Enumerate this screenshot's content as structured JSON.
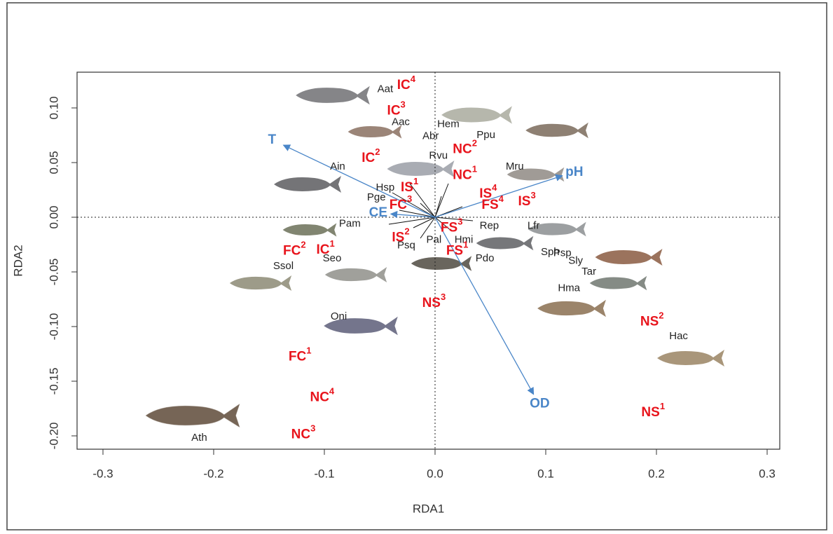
{
  "chart_data": {
    "type": "biplot",
    "x_label": "RDA1",
    "y_label": "RDA2",
    "xlim": [
      -0.3234,
      0.3114
    ],
    "ylim": [
      -0.2122,
      0.1327
    ],
    "xticks": [
      -0.3,
      -0.2,
      -0.1,
      {
        "value": 0,
        "label": "0.0"
      },
      0.1,
      0.2,
      0.3
    ],
    "yticks": [
      {
        "value": 0.1,
        "label": "0.10"
      },
      0.05,
      {
        "value": 0,
        "label": "0.00"
      },
      -0.05,
      {
        "value": -0.1,
        "label": "-0.10"
      },
      -0.15,
      {
        "value": -0.2,
        "label": "-0.20"
      }
    ],
    "sites_color": "#e8141c",
    "species_color": "#222222",
    "vectors_color": "#4a86c8",
    "sites": [
      {
        "label": "IC",
        "sup": "4",
        "x": -0.026,
        "y": 0.1205
      },
      {
        "label": "IC",
        "sup": "3",
        "x": -0.035,
        "y": 0.097
      },
      {
        "label": "IC",
        "sup": "2",
        "x": -0.058,
        "y": 0.054
      },
      {
        "label": "NC",
        "sup": "2",
        "x": 0.027,
        "y": 0.062
      },
      {
        "label": "NC",
        "sup": "1",
        "x": 0.027,
        "y": 0.038
      },
      {
        "label": "IS",
        "sup": "4",
        "x": 0.048,
        "y": 0.021
      },
      {
        "label": "FS",
        "sup": "4",
        "x": 0.052,
        "y": 0.011
      },
      {
        "label": "IS",
        "sup": "3",
        "x": 0.083,
        "y": 0.014
      },
      {
        "label": "IS",
        "sup": "1",
        "x": -0.023,
        "y": 0.027
      },
      {
        "label": "FC",
        "sup": "3",
        "x": -0.031,
        "y": 0.011
      },
      {
        "label": "FS",
        "sup": "3",
        "x": 0.015,
        "y": -0.01
      },
      {
        "label": "IS",
        "sup": "2",
        "x": -0.031,
        "y": -0.019
      },
      {
        "label": "FS",
        "sup": "1",
        "x": 0.02,
        "y": -0.031
      },
      {
        "label": "FC",
        "sup": "2",
        "x": -0.127,
        "y": -0.031
      },
      {
        "label": "IC",
        "sup": "1",
        "x": -0.099,
        "y": -0.03
      },
      {
        "label": "NS",
        "sup": "3",
        "x": -0.001,
        "y": -0.079
      },
      {
        "label": "NS",
        "sup": "2",
        "x": 0.196,
        "y": -0.096
      },
      {
        "label": "FC",
        "sup": "1",
        "x": -0.122,
        "y": -0.128
      },
      {
        "label": "NC",
        "sup": "4",
        "x": -0.102,
        "y": -0.165
      },
      {
        "label": "NS",
        "sup": "1",
        "x": 0.197,
        "y": -0.179
      },
      {
        "label": "NC",
        "sup": "3",
        "x": -0.119,
        "y": -0.199
      }
    ],
    "species": [
      {
        "label": "Aat",
        "x": -0.045,
        "y": 0.117
      },
      {
        "label": "Aac",
        "x": -0.031,
        "y": 0.087
      },
      {
        "label": "Hem",
        "x": 0.012,
        "y": 0.085
      },
      {
        "label": "Abr",
        "x": -0.004,
        "y": 0.074
      },
      {
        "label": "Ppu",
        "x": 0.046,
        "y": 0.075
      },
      {
        "label": "Rvu",
        "x": 0.003,
        "y": 0.056
      },
      {
        "label": "Ain",
        "x": -0.088,
        "y": 0.046
      },
      {
        "label": "Mru",
        "x": 0.072,
        "y": 0.046
      },
      {
        "label": "Hsp",
        "x": -0.045,
        "y": 0.027
      },
      {
        "label": "Pge",
        "x": -0.053,
        "y": 0.018
      },
      {
        "label": "Pam",
        "x": -0.077,
        "y": -0.006
      },
      {
        "label": "Rep",
        "x": 0.049,
        "y": -0.008
      },
      {
        "label": "Lfr",
        "x": 0.089,
        "y": -0.008
      },
      {
        "label": "Hmi",
        "x": 0.026,
        "y": -0.021
      },
      {
        "label": "Pal",
        "x": -0.001,
        "y": -0.021
      },
      {
        "label": "Psq",
        "x": -0.026,
        "y": -0.026
      },
      {
        "label": "Seo",
        "x": -0.093,
        "y": -0.038
      },
      {
        "label": "Ssol",
        "x": -0.137,
        "y": -0.045
      },
      {
        "label": "Pdo",
        "x": 0.045,
        "y": -0.038
      },
      {
        "label": "Sph",
        "x": 0.104,
        "y": -0.032
      },
      {
        "label": "Psp",
        "x": 0.115,
        "y": -0.033
      },
      {
        "label": "Sly",
        "x": 0.127,
        "y": -0.04
      },
      {
        "label": "Tar",
        "x": 0.139,
        "y": -0.05
      },
      {
        "label": "Hma",
        "x": 0.121,
        "y": -0.065
      },
      {
        "label": "Oni",
        "x": -0.087,
        "y": -0.091
      },
      {
        "label": "Hac",
        "x": 0.22,
        "y": -0.109
      },
      {
        "label": "Ath",
        "x": -0.213,
        "y": -0.202
      }
    ],
    "vectors": [
      {
        "name": "T",
        "x": -0.137,
        "y": 0.066
      },
      {
        "name": "pH",
        "x": 0.115,
        "y": 0.038
      },
      {
        "name": "OD",
        "x": 0.089,
        "y": -0.162
      },
      {
        "name": "CE",
        "x": -0.04,
        "y": 0.003
      }
    ]
  }
}
